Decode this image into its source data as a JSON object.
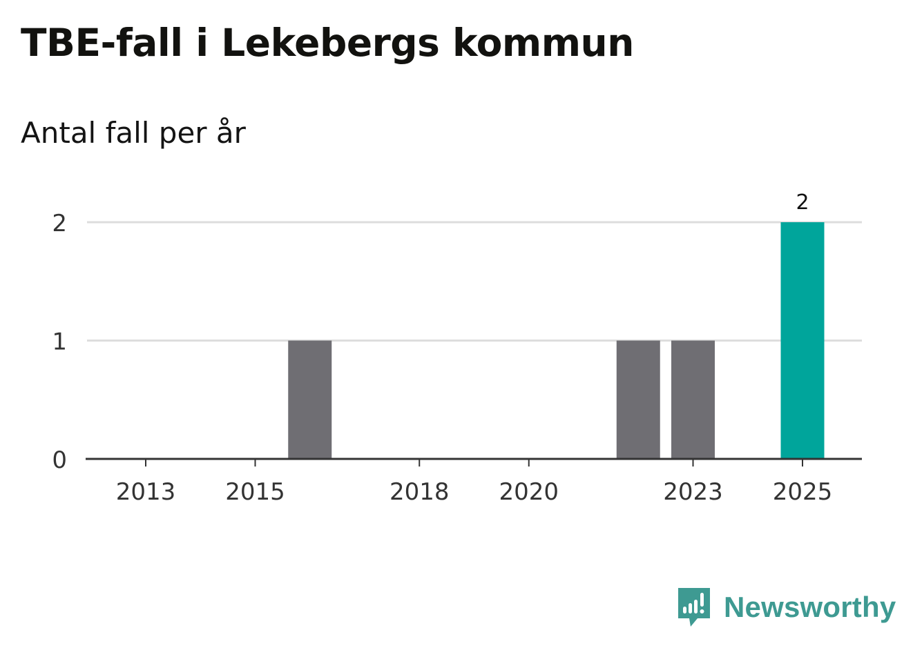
{
  "title": "TBE-fall i Lekebergs kommun",
  "subtitle": "Antal fall per år",
  "brand": {
    "name": "Newsworthy",
    "icon": "newsworthy-logo-icon"
  },
  "colors": {
    "default_bar": "#6f6e73",
    "highlight_bar": "#00a59b",
    "gridline": "#dddddd",
    "axis": "#333333",
    "brand": "#3e9a92"
  },
  "chart_data": {
    "type": "bar",
    "title": "TBE-fall i Lekebergs kommun",
    "subtitle": "Antal fall per år",
    "xlabel": "",
    "ylabel": "",
    "categories": [
      "2013",
      "2014",
      "2015",
      "2016",
      "2017",
      "2018",
      "2019",
      "2020",
      "2021",
      "2022",
      "2023",
      "2024",
      "2025"
    ],
    "values": [
      0,
      0,
      0,
      1,
      0,
      0,
      0,
      0,
      0,
      1,
      1,
      0,
      2
    ],
    "highlight": "2025",
    "x_tick_labels": [
      "2013",
      "2015",
      "2018",
      "2020",
      "2023",
      "2025"
    ],
    "y_ticks": [
      0,
      1,
      2
    ],
    "ylim": [
      0,
      2
    ],
    "grid": true,
    "data_labels": [
      {
        "category": "2025",
        "text": "2"
      }
    ]
  }
}
